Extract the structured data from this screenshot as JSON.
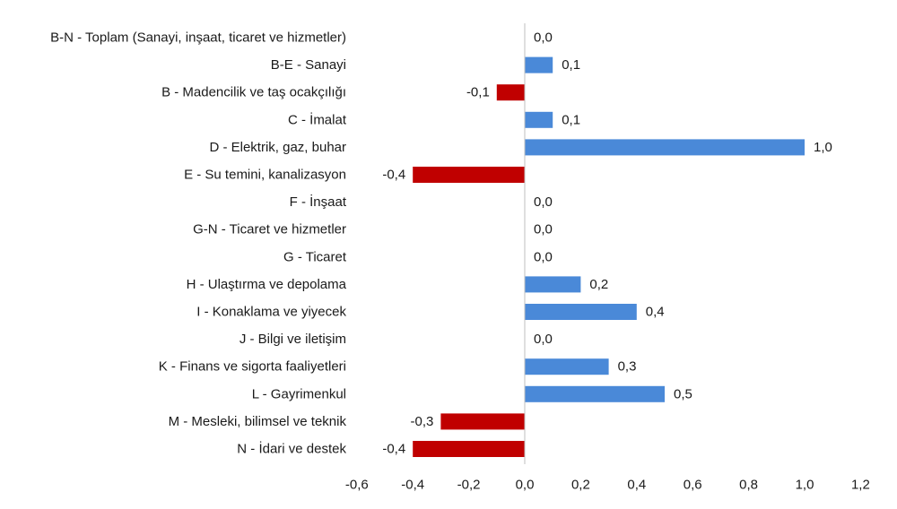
{
  "chart_data": {
    "type": "bar",
    "orientation": "horizontal",
    "title": "",
    "xlabel": "",
    "ylabel": "",
    "xlim": [
      -0.6,
      1.2
    ],
    "x_ticks": [
      "-0,6",
      "-0,4",
      "-0,2",
      "0,0",
      "0,2",
      "0,4",
      "0,6",
      "0,8",
      "1,0",
      "1,2"
    ],
    "x_tick_values": [
      -0.6,
      -0.4,
      -0.2,
      0.0,
      0.2,
      0.4,
      0.6,
      0.8,
      1.0,
      1.2
    ],
    "grid": false,
    "legend": "none",
    "colors": {
      "positive": "#4a89d8",
      "negative": "#c00000"
    },
    "categories": [
      "B-N - Toplam (Sanayi, inşaat, ticaret ve hizmetler)",
      "B-E - Sanayi",
      "B - Madencilik ve taş ocakçılığı",
      "C - İmalat",
      "D - Elektrik, gaz, buhar",
      "E - Su temini, kanalizasyon",
      "F - İnşaat",
      "G-N - Ticaret ve hizmetler",
      "G - Ticaret",
      "H - Ulaştırma ve depolama",
      "I - Konaklama ve yiyecek",
      "J - Bilgi ve iletişim",
      "K - Finans ve sigorta faaliyetleri",
      "L - Gayrimenkul",
      "M - Mesleki, bilimsel ve teknik",
      "N - İdari ve destek"
    ],
    "values": [
      0.0,
      0.1,
      -0.1,
      0.1,
      1.0,
      -0.4,
      0.0,
      0.0,
      0.0,
      0.2,
      0.4,
      0.0,
      0.3,
      0.5,
      -0.3,
      -0.4
    ],
    "value_labels": [
      "0,0",
      "0,1",
      "-0,1",
      "0,1",
      "1,0",
      "-0,4",
      "0,0",
      "0,0",
      "0,0",
      "0,2",
      "0,4",
      "0,0",
      "0,3",
      "0,5",
      "-0,3",
      "-0,4"
    ]
  }
}
